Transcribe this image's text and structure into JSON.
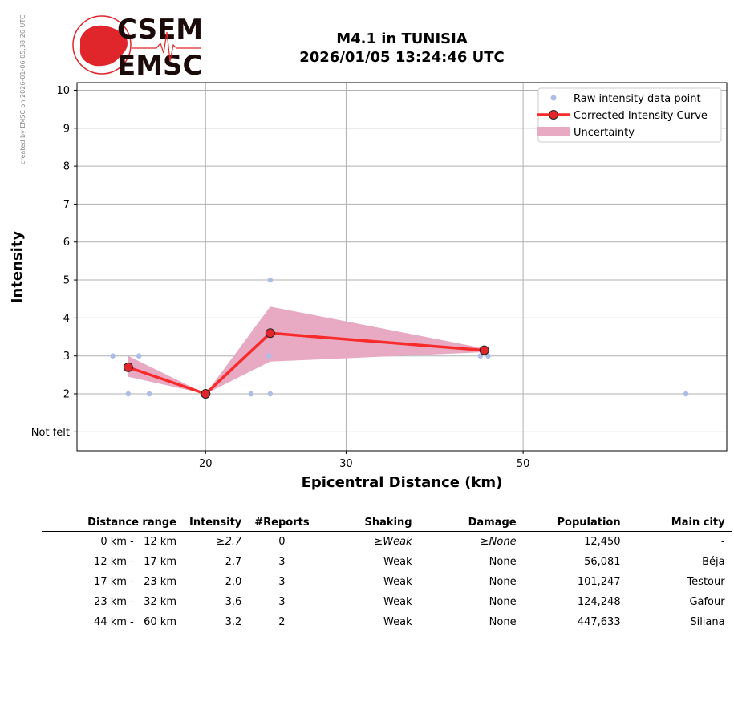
{
  "logo": {
    "line1": "CSEM",
    "line2": "EMSC"
  },
  "side_note": "created by EMSC on 2026-01-06 05:38:26 UTC",
  "title_line1": "M4.1 in TUNISIA",
  "title_line2": "2026/01/05 13:24:46 UTC",
  "colors": {
    "raw_points": "#aebde6",
    "curve": "#f82a2a",
    "marker": "#e0262b",
    "uncertainty": "#e8aac3",
    "grid": "#b0b0b0"
  },
  "chart_data": {
    "type": "line",
    "xlabel": "Epicentral Distance (km)",
    "ylabel": "Intensity",
    "x_scale": "log",
    "x_ticks": [
      20,
      30,
      50
    ],
    "xlim": [
      13.8,
      90
    ],
    "y_ticks": [
      1,
      2,
      3,
      4,
      5,
      6,
      7,
      8,
      9,
      10
    ],
    "y_tick_labels": [
      "Not felt",
      "2",
      "3",
      "4",
      "5",
      "6",
      "7",
      "8",
      "9",
      "10"
    ],
    "ylim": [
      0.5,
      10.2
    ],
    "grid": true,
    "legend_position": "top-right",
    "legend": [
      "Raw intensity data point",
      "Corrected Intensity Curve",
      "Uncertainty"
    ],
    "raw_points": [
      {
        "x": 15.3,
        "y": 3
      },
      {
        "x": 16.0,
        "y": 2
      },
      {
        "x": 16.5,
        "y": 3
      },
      {
        "x": 17.0,
        "y": 2
      },
      {
        "x": 22.8,
        "y": 2
      },
      {
        "x": 24.0,
        "y": 3
      },
      {
        "x": 24.1,
        "y": 5
      },
      {
        "x": 24.1,
        "y": 2
      },
      {
        "x": 44.2,
        "y": 3
      },
      {
        "x": 45.2,
        "y": 3
      },
      {
        "x": 80.0,
        "y": 2
      }
    ],
    "corrected_curve": [
      {
        "x": 16.0,
        "y": 2.7
      },
      {
        "x": 20.0,
        "y": 2.0
      },
      {
        "x": 24.1,
        "y": 3.6
      },
      {
        "x": 44.7,
        "y": 3.15
      }
    ],
    "uncertainty_upper": [
      3.0,
      2.0,
      4.3,
      3.2
    ],
    "uncertainty_lower": [
      2.45,
      2.0,
      2.85,
      3.1
    ]
  },
  "table": {
    "headers": [
      "Distance range",
      "Intensity",
      "#Reports",
      "Shaking",
      "Damage",
      "Population",
      "Main city"
    ],
    "rows": [
      {
        "range": "0 km -   12 km",
        "intensity": "≥2.7",
        "reports": "0",
        "shaking": "≥Weak",
        "damage": "≥None",
        "population": "12,450",
        "city": "-"
      },
      {
        "range": "12 km -   17 km",
        "intensity": "2.7",
        "reports": "3",
        "shaking": "Weak",
        "damage": "None",
        "population": "56,081",
        "city": "Béja"
      },
      {
        "range": "17 km -   23 km",
        "intensity": "2.0",
        "reports": "3",
        "shaking": "Weak",
        "damage": "None",
        "population": "101,247",
        "city": "Testour"
      },
      {
        "range": "23 km -   32 km",
        "intensity": "3.6",
        "reports": "3",
        "shaking": "Weak",
        "damage": "None",
        "population": "124,248",
        "city": "Gafour"
      },
      {
        "range": "44 km -   60 km",
        "intensity": "3.2",
        "reports": "2",
        "shaking": "Weak",
        "damage": "None",
        "population": "447,633",
        "city": "Siliana"
      }
    ]
  }
}
